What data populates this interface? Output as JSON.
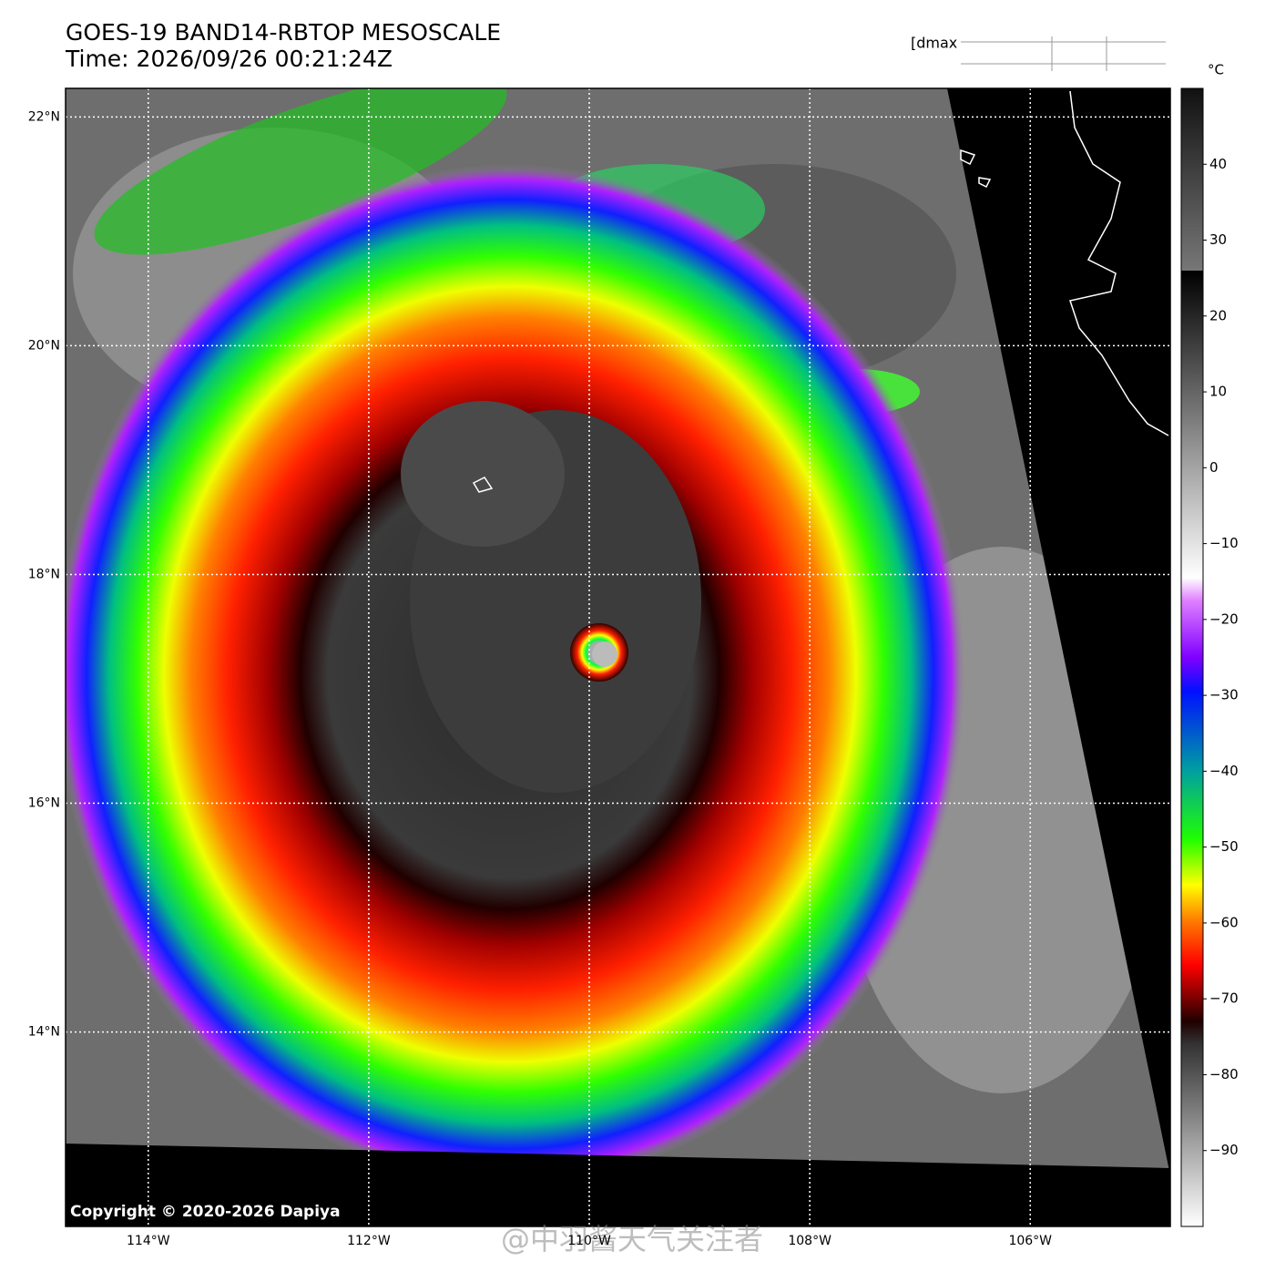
{
  "header": {
    "title": "GOES-19 BAND14-RBTOP MESOSCALE",
    "time": "Time: 2026/09/26 00:21:24Z",
    "legend_fragment": "[dmax"
  },
  "map": {
    "xlim": [
      -114.75,
      -104.73
    ],
    "ylim": [
      12.3,
      22.25
    ],
    "lat_ticks": [
      {
        "value": 22,
        "label": "22°N"
      },
      {
        "value": 20,
        "label": "20°N"
      },
      {
        "value": 18,
        "label": "18°N"
      },
      {
        "value": 16,
        "label": "16°N"
      },
      {
        "value": 14,
        "label": "14°N"
      }
    ],
    "lon_ticks": [
      {
        "value": -114,
        "label": "114°W"
      },
      {
        "value": -112,
        "label": "112°W"
      },
      {
        "value": -110,
        "label": "110°W"
      },
      {
        "value": -108,
        "label": "108°W"
      },
      {
        "value": -106,
        "label": "106°W"
      }
    ],
    "copyright": "Copyright © 2020-2026 Dapiya"
  },
  "colorbar": {
    "unit": "°C",
    "lim": [
      -100,
      50
    ],
    "ticks": [
      40,
      30,
      20,
      10,
      0,
      {
        "value": -10,
        "label": "−10"
      },
      {
        "value": -20,
        "label": "−20"
      },
      {
        "value": -30,
        "label": "−30"
      },
      {
        "value": -40,
        "label": "−40"
      },
      {
        "value": -50,
        "label": "−50"
      },
      {
        "value": -60,
        "label": "−60"
      },
      {
        "value": -70,
        "label": "−70"
      },
      {
        "value": -80,
        "label": "−80"
      },
      {
        "value": -90,
        "label": "−90"
      }
    ]
  },
  "watermark": "@中羽酱天气关注者"
}
